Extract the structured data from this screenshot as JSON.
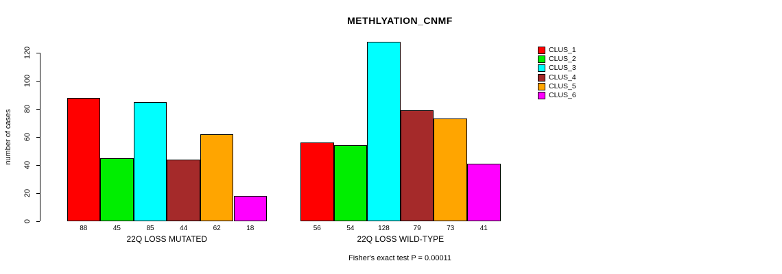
{
  "chart_data": {
    "type": "bar",
    "title": "METHLYATION_CNMF",
    "ylabel": "number of cases",
    "xlabel": "",
    "ylim": [
      0,
      120
    ],
    "yticks": [
      0,
      20,
      40,
      60,
      80,
      100,
      120
    ],
    "grid": false,
    "legend_position": "right",
    "legend_entries": [
      "CLUS_1",
      "CLUS_2",
      "CLUS_3",
      "CLUS_4",
      "CLUS_5",
      "CLUS_6"
    ],
    "series_colors": [
      "#FF0000",
      "#00EE00",
      "#00FFFF",
      "#A52A2A",
      "#FFA500",
      "#FF00FF"
    ],
    "groups": [
      {
        "label": "22Q LOSS MUTATED",
        "categories": [
          "CLUS_1",
          "CLUS_2",
          "CLUS_3",
          "CLUS_4",
          "CLUS_5",
          "CLUS_6"
        ],
        "values": [
          88,
          45,
          85,
          44,
          62,
          18
        ]
      },
      {
        "label": "22Q LOSS WILD-TYPE",
        "categories": [
          "CLUS_1",
          "CLUS_2",
          "CLUS_3",
          "CLUS_4",
          "CLUS_5",
          "CLUS_6"
        ],
        "values": [
          56,
          54,
          128,
          79,
          73,
          41
        ]
      }
    ],
    "annotation": "Fisher's exact test P = 0.00011"
  },
  "colors": {
    "background": "#FFFFFF",
    "axis": "#000000",
    "text": "#000000"
  }
}
